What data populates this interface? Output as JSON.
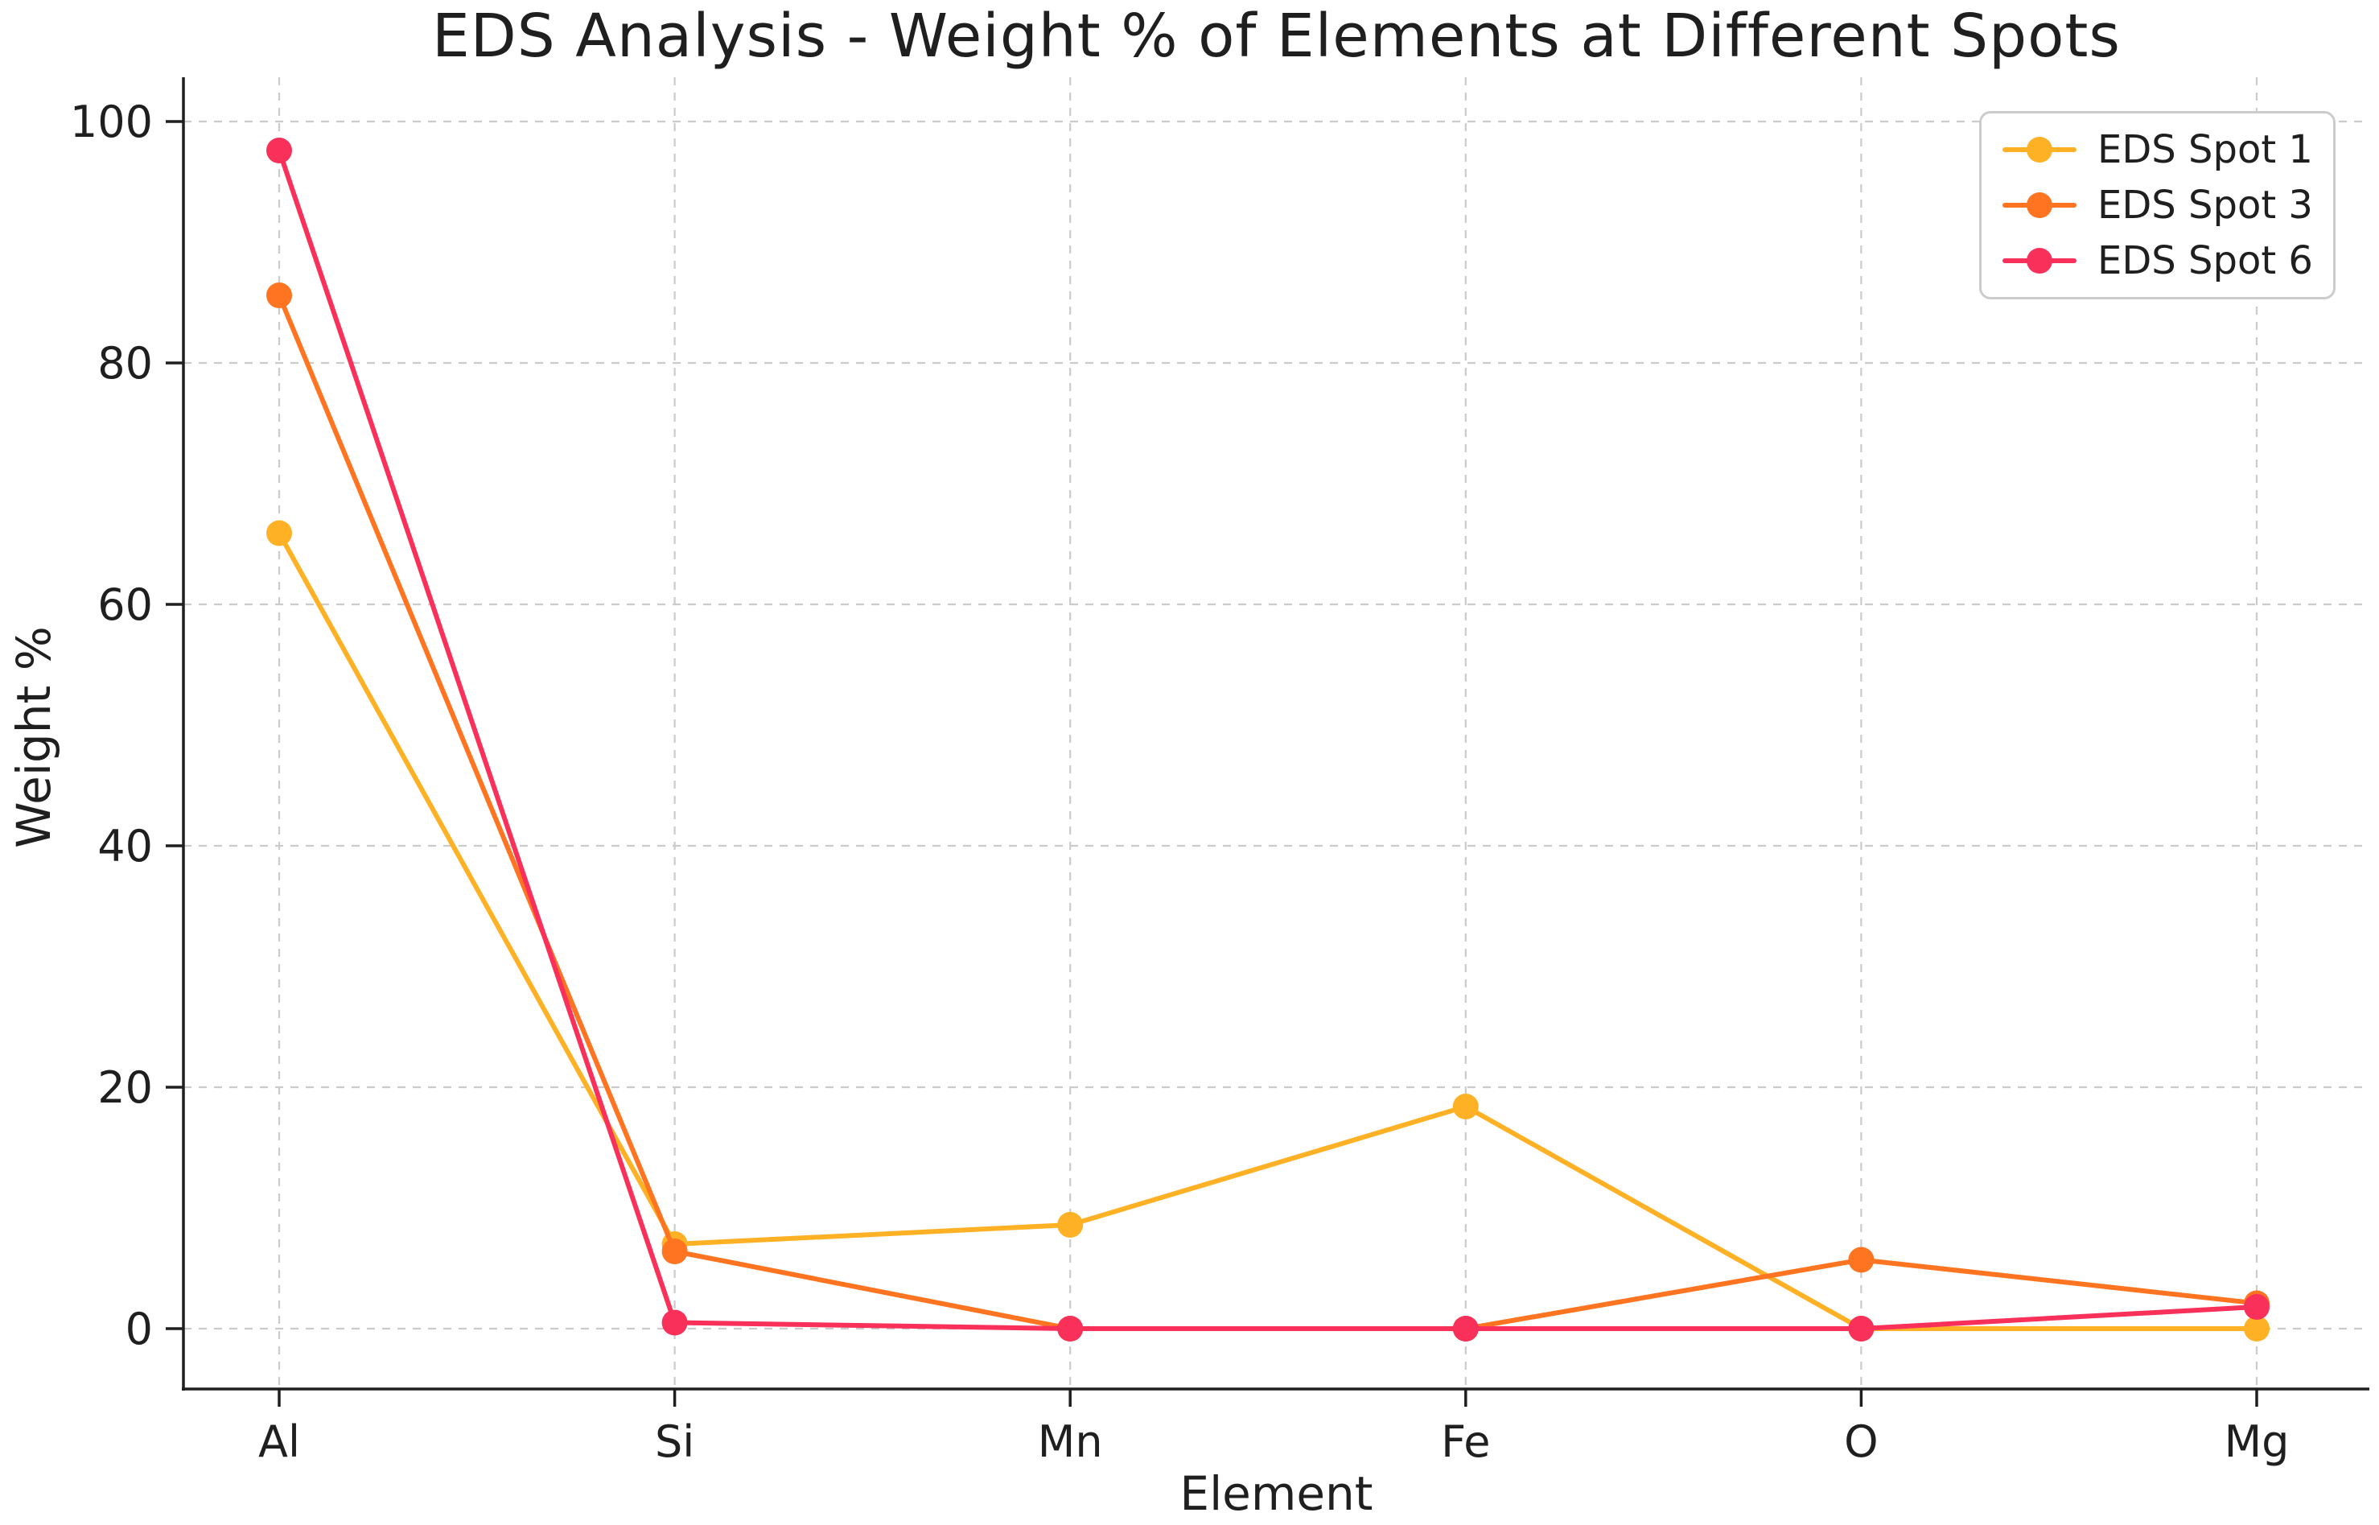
{
  "chart_data": {
    "type": "line",
    "title": "EDS Analysis - Weight % of Elements at Different Spots",
    "xlabel": "Element",
    "ylabel": "Weight %",
    "categories": [
      "Al",
      "Si",
      "Mn",
      "Fe",
      "O",
      "Mg"
    ],
    "series": [
      {
        "name": "EDS Spot 1",
        "color": "#FFB125",
        "values": [
          65.9,
          7.0,
          8.6,
          18.4,
          0.0,
          0.0
        ]
      },
      {
        "name": "EDS Spot 3",
        "color": "#FF7420",
        "values": [
          85.6,
          6.4,
          0.0,
          0.0,
          5.7,
          2.1
        ]
      },
      {
        "name": "EDS Spot 6",
        "color": "#F9305A",
        "values": [
          97.6,
          0.5,
          0.0,
          0.0,
          0.0,
          1.8
        ]
      }
    ],
    "yticks": [
      0,
      20,
      40,
      60,
      80,
      100
    ],
    "ylim": [
      -5,
      103.5
    ],
    "marker": "circle",
    "grid": "dashed",
    "legend_position": "upper right",
    "colors": {
      "background": "#ffffff",
      "grid": "#cbcbcb",
      "axis": "#1f1f1f",
      "text": "#1f1f1f",
      "legend_border": "#cccccc"
    }
  }
}
